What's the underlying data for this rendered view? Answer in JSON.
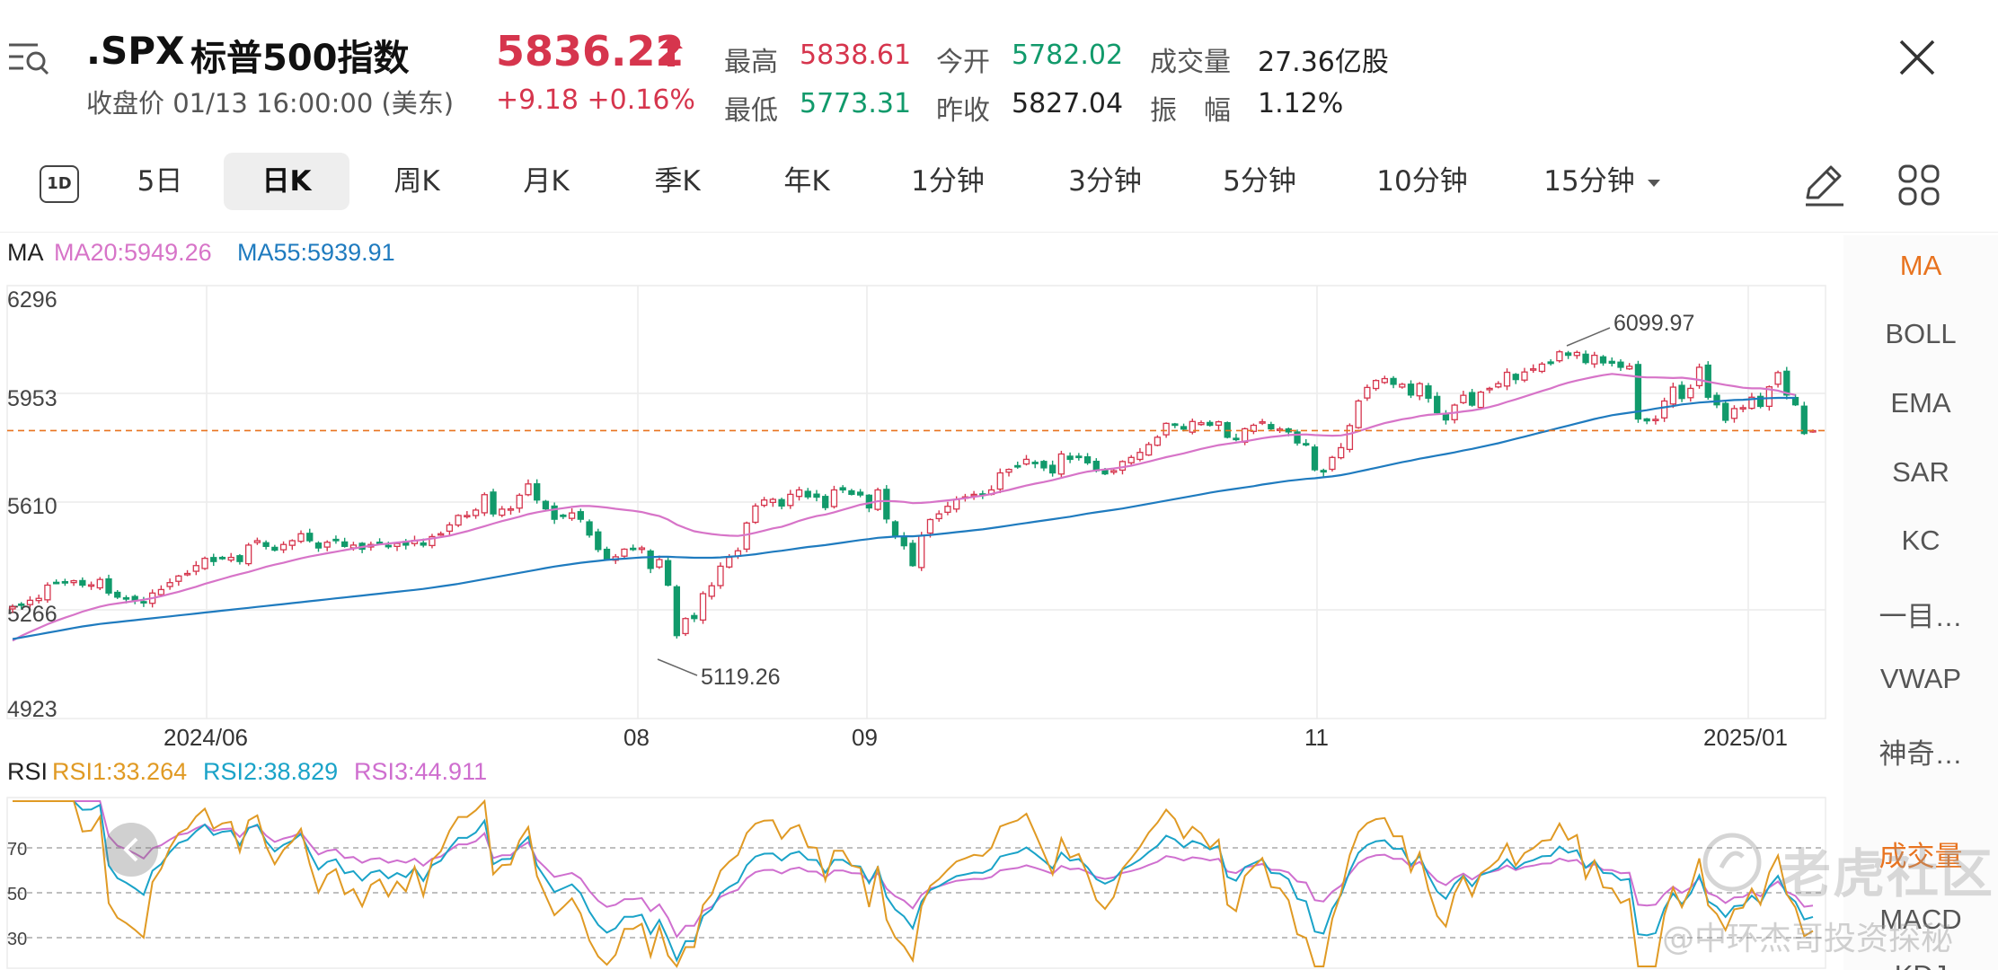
{
  "header": {
    "symbol": ".SPX",
    "name": "标普500指数",
    "close_label": "收盘价",
    "close_time": "01/13 16:00:00 (美东)",
    "price": "5836.22",
    "change": "+9.18",
    "change_pct": "+0.16%",
    "stats": [
      {
        "label": "最高",
        "value": "5838.61",
        "color": "red"
      },
      {
        "label": "今开",
        "value": "5782.02",
        "color": "green"
      },
      {
        "label": "成交量",
        "value": "27.36亿股",
        "color": "dark"
      },
      {
        "label": "最低",
        "value": "5773.31",
        "color": "green"
      },
      {
        "label": "昨收",
        "value": "5827.04",
        "color": "dark"
      },
      {
        "label": "振　幅",
        "value": "1.12%",
        "color": "dark"
      }
    ]
  },
  "tabs": {
    "icon_label": "1D",
    "items": [
      "5日",
      "日K",
      "周K",
      "月K",
      "季K",
      "年K",
      "1分钟",
      "3分钟",
      "5分钟",
      "10分钟",
      "15分钟"
    ],
    "active_index": 1
  },
  "chart_data": {
    "type": "candlestick",
    "ma_label": "MA",
    "ma20_label": "MA20:5949.26",
    "ma55_label": "MA55:5939.91",
    "rsi_label": "RSI",
    "rsi1_label": "RSI1:33.264",
    "rsi2_label": "RSI2:38.829",
    "rsi3_label": "RSI3:44.911",
    "y_ticks": [
      "6296",
      "5953",
      "5610",
      "5266",
      "4923"
    ],
    "y_range": [
      4923,
      6296
    ],
    "x_ticks": [
      "2024/06",
      "08",
      "09",
      "11",
      "2025/01"
    ],
    "high_annotation": "6099.97",
    "low_annotation": "5119.26",
    "current_price": 5836.22,
    "rsi_ticks": [
      "70",
      "50",
      "30"
    ],
    "colors": {
      "up": "#d6354d",
      "down": "#119a6b",
      "ma20": "#d774c8",
      "ma55": "#1f7bbf",
      "rsi1": "#e09a24",
      "rsi2": "#1aa3c8",
      "rsi3": "#cf6fcf",
      "last": "#e8731f"
    },
    "closes": [
      5277,
      5283,
      5298,
      5304,
      5346,
      5352,
      5354,
      5360,
      5346,
      5347,
      5364,
      5321,
      5308,
      5303,
      5297,
      5290,
      5321,
      5332,
      5354,
      5375,
      5383,
      5408,
      5431,
      5421,
      5431,
      5434,
      5421,
      5473,
      5487,
      5469,
      5457,
      5475,
      5487,
      5509,
      5487,
      5464,
      5482,
      5488,
      5469,
      5473,
      5460,
      5475,
      5479,
      5469,
      5478,
      5473,
      5488,
      5473,
      5500,
      5509,
      5537,
      5567,
      5567,
      5584,
      5633,
      5572,
      5587,
      5588,
      5631,
      5667,
      5616,
      5588,
      5555,
      5565,
      5575,
      5555,
      5505,
      5459,
      5427,
      5436,
      5460,
      5460,
      5464,
      5399,
      5427,
      5346,
      5186,
      5240,
      5240,
      5319,
      5344,
      5406,
      5434,
      5455,
      5543,
      5597,
      5616,
      5618,
      5597,
      5634,
      5648,
      5626,
      5625,
      5592,
      5648,
      5648,
      5634,
      5632,
      5591,
      5648,
      5556,
      5503,
      5471,
      5408,
      5503,
      5554,
      5572,
      5596,
      5618,
      5626,
      5634,
      5633,
      5648,
      5702,
      5713,
      5722,
      5745,
      5732,
      5718,
      5702,
      5762,
      5745,
      5751,
      5734,
      5709,
      5699,
      5709,
      5738,
      5751,
      5767,
      5792,
      5815,
      5859,
      5853,
      5841,
      5865,
      5861,
      5853,
      5864,
      5815,
      5808,
      5842,
      5853,
      5864,
      5842,
      5841,
      5832,
      5797,
      5792,
      5712,
      5705,
      5751,
      5782,
      5852,
      5930,
      5973,
      5995,
      6001,
      5983,
      5983,
      5949,
      5985,
      5939,
      5893,
      5870,
      5917,
      5948,
      5917,
      5958,
      5970,
      5985,
      6021,
      5998,
      6022,
      6032,
      6047,
      6049,
      6086,
      6075,
      6084,
      6052,
      6075,
      6051,
      6050,
      6037,
      6040,
      5873,
      5867,
      5872,
      5930,
      5974,
      5938,
      5970,
      6037,
      5942,
      5918,
      5869,
      5906,
      5909,
      5942,
      5913,
      5975,
      6020,
      5949,
      5918,
      5827,
      5836
    ],
    "ma20": [
      5170,
      5185,
      5198,
      5210,
      5222,
      5233,
      5243,
      5252,
      5262,
      5270,
      5278,
      5284,
      5288,
      5292,
      5296,
      5300,
      5305,
      5311,
      5318,
      5325,
      5333,
      5341,
      5350,
      5358,
      5366,
      5374,
      5381,
      5388,
      5396,
      5404,
      5411,
      5417,
      5424,
      5431,
      5437,
      5442,
      5447,
      5452,
      5457,
      5462,
      5467,
      5471,
      5475,
      5478,
      5481,
      5484,
      5487,
      5490,
      5494,
      5498,
      5503,
      5510,
      5517,
      5525,
      5533,
      5541,
      5549,
      5556,
      5563,
      5571,
      5577,
      5582,
      5586,
      5590,
      5594,
      5597,
      5597,
      5595,
      5592,
      5588,
      5585,
      5582,
      5578,
      5571,
      5565,
      5554,
      5538,
      5527,
      5517,
      5512,
      5508,
      5505,
      5503,
      5502,
      5506,
      5512,
      5519,
      5526,
      5531,
      5540,
      5550,
      5558,
      5565,
      5570,
      5577,
      5585,
      5593,
      5601,
      5606,
      5612,
      5613,
      5612,
      5610,
      5606,
      5607,
      5609,
      5612,
      5615,
      5618,
      5622,
      5626,
      5630,
      5635,
      5642,
      5648,
      5655,
      5662,
      5668,
      5673,
      5679,
      5686,
      5693,
      5700,
      5706,
      5710,
      5713,
      5716,
      5720,
      5725,
      5731,
      5738,
      5745,
      5752,
      5758,
      5764,
      5771,
      5778,
      5784,
      5790,
      5794,
      5798,
      5802,
      5807,
      5812,
      5816,
      5819,
      5822,
      5823,
      5824,
      5822,
      5821,
      5820,
      5821,
      5826,
      5834,
      5843,
      5852,
      5860,
      5866,
      5872,
      5876,
      5882,
      5886,
      5888,
      5890,
      5893,
      5897,
      5900,
      5905,
      5911,
      5918,
      5927,
      5935,
      5944,
      5953,
      5962,
      5970,
      5980,
      5988,
      5995,
      6001,
      6007,
      6012,
      6016,
      6013,
      6010,
      6007,
      6005,
      6005,
      6004,
      6003,
      6004,
      6001,
      5997,
      5991,
      5986,
      5981,
      5977,
      5972,
      5970,
      5970,
      5967,
      5963,
      5955,
      5949
    ],
    "ma55": [
      5175,
      5180,
      5185,
      5190,
      5195,
      5200,
      5205,
      5210,
      5215,
      5219,
      5223,
      5226,
      5229,
      5232,
      5235,
      5238,
      5241,
      5244,
      5247,
      5250,
      5253,
      5256,
      5259,
      5262,
      5265,
      5268,
      5271,
      5274,
      5277,
      5280,
      5283,
      5286,
      5289,
      5292,
      5295,
      5298,
      5301,
      5304,
      5307,
      5310,
      5313,
      5316,
      5319,
      5322,
      5325,
      5328,
      5331,
      5334,
      5338,
      5342,
      5346,
      5350,
      5355,
      5360,
      5365,
      5370,
      5375,
      5380,
      5385,
      5390,
      5395,
      5400,
      5405,
      5409,
      5413,
      5417,
      5420,
      5423,
      5426,
      5428,
      5430,
      5432,
      5434,
      5435,
      5436,
      5436,
      5435,
      5434,
      5433,
      5433,
      5433,
      5434,
      5436,
      5438,
      5441,
      5444,
      5448,
      5452,
      5455,
      5459,
      5463,
      5467,
      5470,
      5473,
      5477,
      5481,
      5485,
      5489,
      5492,
      5496,
      5498,
      5500,
      5501,
      5501,
      5503,
      5505,
      5508,
      5511,
      5514,
      5517,
      5520,
      5523,
      5527,
      5531,
      5535,
      5539,
      5543,
      5547,
      5551,
      5555,
      5559,
      5563,
      5568,
      5573,
      5577,
      5581,
      5585,
      5589,
      5594,
      5599,
      5604,
      5609,
      5614,
      5619,
      5624,
      5629,
      5634,
      5639,
      5644,
      5648,
      5652,
      5656,
      5660,
      5665,
      5669,
      5673,
      5677,
      5680,
      5683,
      5685,
      5688,
      5691,
      5695,
      5700,
      5706,
      5712,
      5718,
      5724,
      5730,
      5736,
      5741,
      5747,
      5752,
      5757,
      5762,
      5767,
      5773,
      5778,
      5784,
      5790,
      5796,
      5803,
      5810,
      5817,
      5824,
      5831,
      5838,
      5845,
      5852,
      5859,
      5866,
      5873,
      5879,
      5885,
      5889,
      5893,
      5897,
      5901,
      5906,
      5910,
      5914,
      5919,
      5922,
      5925,
      5927,
      5929,
      5931,
      5933,
      5934,
      5936,
      5938,
      5939,
      5940,
      5940,
      5940
    ]
  },
  "indicators": {
    "items": [
      "MA",
      "BOLL",
      "EMA",
      "SAR",
      "KC",
      "一目…",
      "VWAP",
      "神奇…",
      "成交量",
      "MACD",
      "KDJ"
    ],
    "active_index": 0
  },
  "watermark": {
    "brand": "老虎社区",
    "author": "@中环杰哥投资探秘"
  }
}
